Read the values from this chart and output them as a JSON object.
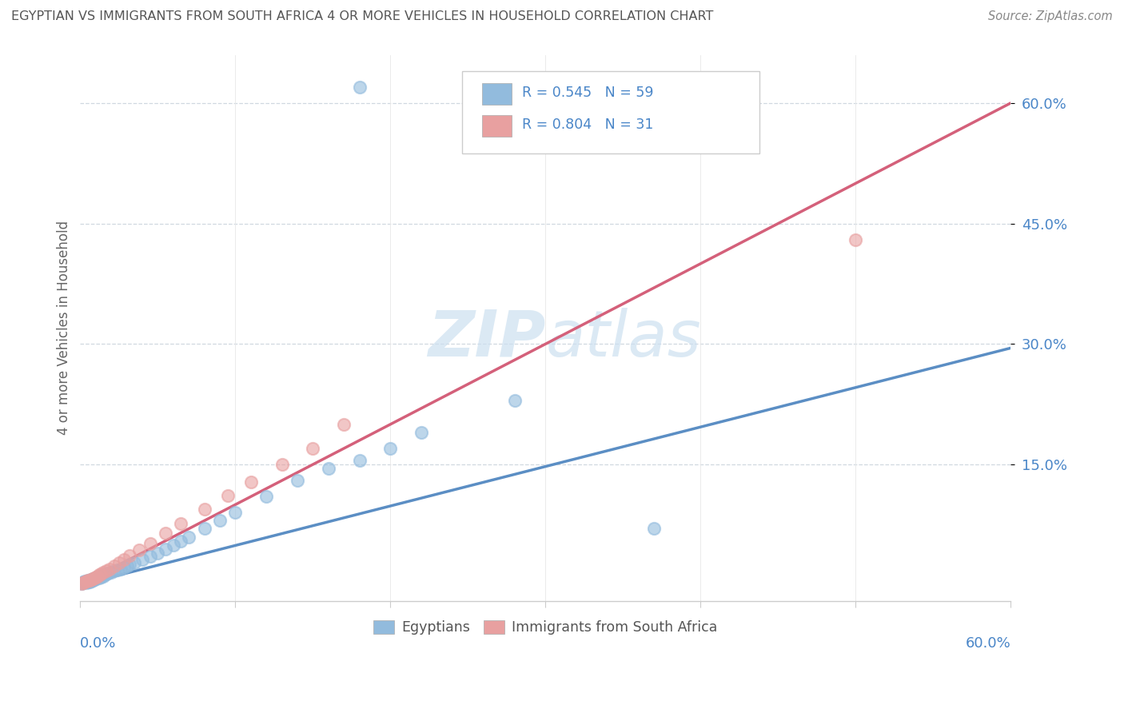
{
  "title": "EGYPTIAN VS IMMIGRANTS FROM SOUTH AFRICA 4 OR MORE VEHICLES IN HOUSEHOLD CORRELATION CHART",
  "source": "Source: ZipAtlas.com",
  "ylabel": "4 or more Vehicles in Household",
  "ytick_vals": [
    0.15,
    0.3,
    0.45,
    0.6
  ],
  "xlim": [
    0.0,
    0.6
  ],
  "ylim": [
    -0.02,
    0.66
  ],
  "blue_color": "#92bbdd",
  "pink_color": "#e8a0a0",
  "blue_line_color": "#5b8ec4",
  "pink_line_color": "#d4607a",
  "diagonal_color": "#a0b8d8",
  "watermark_color": "#cce0f0",
  "egyptians_x": [
    0.001,
    0.002,
    0.002,
    0.003,
    0.003,
    0.004,
    0.004,
    0.005,
    0.005,
    0.005,
    0.006,
    0.006,
    0.006,
    0.007,
    0.007,
    0.007,
    0.008,
    0.008,
    0.008,
    0.009,
    0.009,
    0.01,
    0.01,
    0.011,
    0.012,
    0.012,
    0.013,
    0.014,
    0.015,
    0.016,
    0.017,
    0.018,
    0.02,
    0.022,
    0.024,
    0.026,
    0.028,
    0.03,
    0.032,
    0.035,
    0.04,
    0.045,
    0.05,
    0.055,
    0.06,
    0.065,
    0.07,
    0.08,
    0.09,
    0.1,
    0.12,
    0.14,
    0.16,
    0.18,
    0.2,
    0.22,
    0.28,
    0.18,
    0.37
  ],
  "egyptians_y": [
    0.002,
    0.003,
    0.004,
    0.004,
    0.005,
    0.003,
    0.005,
    0.004,
    0.005,
    0.006,
    0.004,
    0.005,
    0.006,
    0.005,
    0.006,
    0.007,
    0.006,
    0.007,
    0.008,
    0.007,
    0.008,
    0.008,
    0.009,
    0.01,
    0.009,
    0.011,
    0.01,
    0.012,
    0.011,
    0.013,
    0.014,
    0.015,
    0.016,
    0.018,
    0.019,
    0.02,
    0.022,
    0.024,
    0.026,
    0.028,
    0.032,
    0.036,
    0.04,
    0.045,
    0.05,
    0.055,
    0.06,
    0.07,
    0.08,
    0.09,
    0.11,
    0.13,
    0.145,
    0.155,
    0.17,
    0.19,
    0.23,
    0.62,
    0.07
  ],
  "southafrica_x": [
    0.001,
    0.002,
    0.003,
    0.004,
    0.005,
    0.006,
    0.007,
    0.008,
    0.009,
    0.01,
    0.011,
    0.012,
    0.013,
    0.015,
    0.017,
    0.019,
    0.022,
    0.025,
    0.028,
    0.032,
    0.038,
    0.045,
    0.055,
    0.065,
    0.08,
    0.095,
    0.11,
    0.13,
    0.15,
    0.17,
    0.5
  ],
  "southafrica_y": [
    0.002,
    0.003,
    0.004,
    0.005,
    0.006,
    0.006,
    0.007,
    0.008,
    0.009,
    0.01,
    0.011,
    0.013,
    0.014,
    0.016,
    0.018,
    0.02,
    0.024,
    0.028,
    0.032,
    0.037,
    0.044,
    0.052,
    0.064,
    0.076,
    0.094,
    0.111,
    0.128,
    0.15,
    0.17,
    0.2,
    0.43
  ],
  "blue_line_x": [
    0.0,
    0.6
  ],
  "blue_line_y": [
    0.0,
    0.295
  ],
  "pink_line_x": [
    0.0,
    0.6
  ],
  "pink_line_y": [
    0.0,
    0.6
  ],
  "diag_line_x": [
    0.0,
    0.6
  ],
  "diag_line_y": [
    0.0,
    0.6
  ]
}
